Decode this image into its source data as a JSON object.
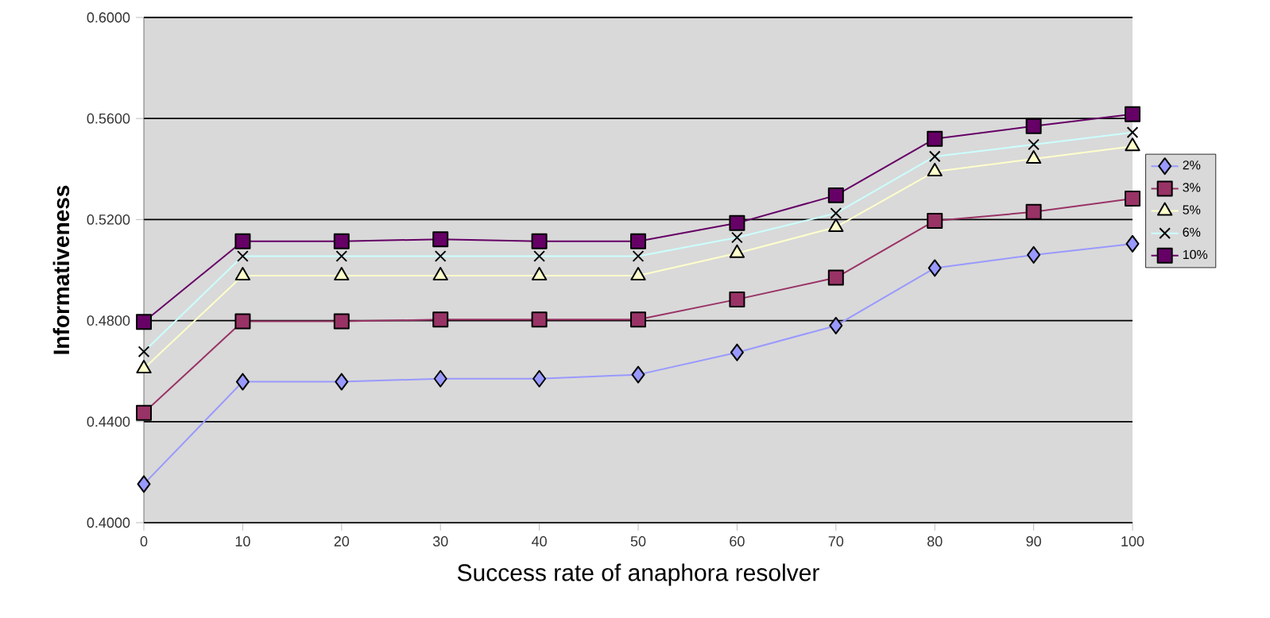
{
  "chart_data": {
    "type": "line",
    "xlabel": "Success rate of anaphora resolver",
    "ylabel": "Informativeness",
    "x": [
      0,
      10,
      20,
      30,
      40,
      50,
      60,
      70,
      80,
      90,
      100
    ],
    "series": [
      {
        "name": "2%",
        "color": "#9999ff",
        "marker": "diamond",
        "values": [
          0.4153,
          0.4558,
          0.4558,
          0.457,
          0.457,
          0.4586,
          0.4674,
          0.478,
          0.5008,
          0.506,
          0.5104
        ]
      },
      {
        "name": "3%",
        "color": "#993366",
        "marker": "square",
        "values": [
          0.4435,
          0.4797,
          0.4797,
          0.4804,
          0.4804,
          0.4804,
          0.4884,
          0.497,
          0.5195,
          0.523,
          0.5283
        ]
      },
      {
        "name": "5%",
        "color": "#ffffcc",
        "marker": "triangle",
        "values": [
          0.461,
          0.4978,
          0.4978,
          0.4978,
          0.4978,
          0.4978,
          0.5067,
          0.517,
          0.539,
          0.544,
          0.549
        ]
      },
      {
        "name": "6%",
        "color": "#ccffff",
        "marker": "cross",
        "values": [
          0.4677,
          0.5055,
          0.5055,
          0.5055,
          0.5055,
          0.5055,
          0.5129,
          0.5225,
          0.545,
          0.5497,
          0.5545
        ]
      },
      {
        "name": "10%",
        "color": "#660066",
        "marker": "square",
        "values": [
          0.4795,
          0.5114,
          0.5114,
          0.5122,
          0.5114,
          0.5114,
          0.5186,
          0.5296,
          0.552,
          0.557,
          0.5617
        ]
      }
    ],
    "xlim": [
      0,
      100
    ],
    "xticks": [
      0,
      10,
      20,
      30,
      40,
      50,
      60,
      70,
      80,
      90,
      100
    ],
    "ylim": [
      0.4,
      0.6
    ],
    "yticks": [
      {
        "value": 0.4,
        "label": "0.4000"
      },
      {
        "value": 0.44,
        "label": "0.4400"
      },
      {
        "value": 0.48,
        "label": "0.4800"
      },
      {
        "value": 0.52,
        "label": "0.5200"
      },
      {
        "value": 0.56,
        "label": "0.5600"
      },
      {
        "value": 0.6,
        "label": "0.6000"
      }
    ],
    "grid": "y",
    "legend": "right"
  }
}
